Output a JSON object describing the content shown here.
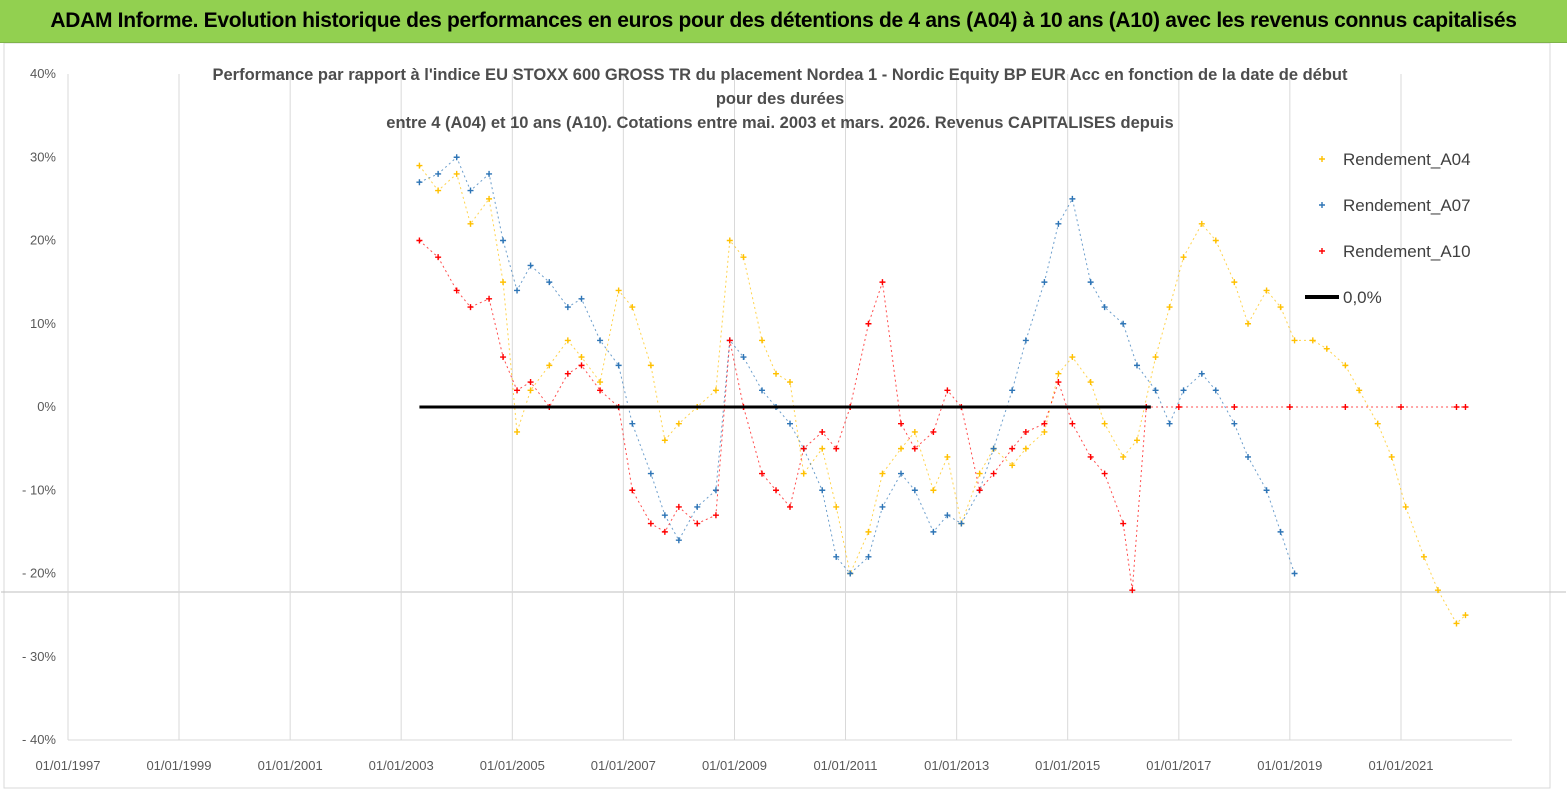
{
  "banner": {
    "title": "ADAM Informe. Evolution historique des performances en euros pour des détentions de 4 ans (A04) à 10 ans (A10) avec les revenus connus capitalisés"
  },
  "chart_data": {
    "type": "scatter",
    "title_lines": [
      "Performance par rapport à l'indice EU STOXX 600 GROSS TR  du placement Nordea 1 - Nordic Equity BP EUR Acc en fonction de la date de début",
      "pour des durées",
      "entre 4 (A04) et 10 ans (A10). Cotations entre mai. 2003 et mars. 2026. Revenus CAPITALISES depuis"
    ],
    "xlabel": "",
    "ylabel": "",
    "x_range": [
      "1997-01-01",
      "2023-01-01"
    ],
    "y_range": [
      -40,
      40
    ],
    "x_tick_labels": [
      "01/01/1997",
      "01/01/1999",
      "01/01/2001",
      "01/01/2003",
      "01/01/2005",
      "01/01/2007",
      "01/01/2009",
      "01/01/2011",
      "01/01/2013",
      "01/01/2015",
      "01/01/2017",
      "01/01/2019",
      "01/01/2021"
    ],
    "y_tick_values": [
      40,
      30,
      20,
      10,
      0,
      -10,
      -20,
      -30,
      -40
    ],
    "y_tick_labels": [
      "40%",
      "30%",
      "20%",
      "10%",
      "0%",
      "- 10%",
      "- 20%",
      "- 30%",
      "- 40%"
    ],
    "legend_position": "right",
    "grid": "vertical",
    "series": [
      {
        "name": "Rendement_A04",
        "color": "#ffc000",
        "marker": "plus",
        "x": [
          "2003-05-01",
          "2003-09-01",
          "2004-01-01",
          "2004-04-01",
          "2004-08-01",
          "2004-11-01",
          "2005-02-01",
          "2005-05-01",
          "2005-09-01",
          "2006-01-01",
          "2006-04-01",
          "2006-08-01",
          "2006-12-01",
          "2007-03-01",
          "2007-07-01",
          "2007-10-01",
          "2008-01-01",
          "2008-05-01",
          "2008-09-01",
          "2008-12-01",
          "2009-03-01",
          "2009-07-01",
          "2009-10-01",
          "2010-01-01",
          "2010-04-01",
          "2010-08-01",
          "2010-11-01",
          "2011-02-01",
          "2011-06-01",
          "2011-09-01",
          "2012-01-01",
          "2012-04-01",
          "2012-08-01",
          "2012-11-01",
          "2013-02-01",
          "2013-06-01",
          "2013-09-01",
          "2014-01-01",
          "2014-04-01",
          "2014-08-01",
          "2014-11-01",
          "2015-02-01",
          "2015-06-01",
          "2015-09-01",
          "2016-01-01",
          "2016-04-01",
          "2016-08-01",
          "2016-11-01",
          "2017-02-01",
          "2017-06-01",
          "2017-09-01",
          "2018-01-01",
          "2018-04-01",
          "2018-08-01",
          "2018-11-01",
          "2019-02-01",
          "2019-06-01",
          "2019-09-01",
          "2020-01-01",
          "2020-04-01",
          "2020-08-01",
          "2020-11-01",
          "2021-02-01",
          "2021-06-01",
          "2021-09-01",
          "2022-01-01",
          "2022-03-01"
        ],
        "y": [
          29,
          26,
          28,
          22,
          25,
          15,
          -3,
          2,
          5,
          8,
          6,
          3,
          14,
          12,
          5,
          -4,
          -2,
          0,
          2,
          20,
          18,
          8,
          4,
          3,
          -8,
          -5,
          -12,
          -20,
          -15,
          -8,
          -5,
          -3,
          -10,
          -6,
          -14,
          -8,
          -5,
          -7,
          -5,
          -3,
          4,
          6,
          3,
          -2,
          -6,
          -4,
          6,
          12,
          18,
          22,
          20,
          15,
          10,
          14,
          12,
          8,
          8,
          7,
          5,
          2,
          -2,
          -6,
          -12,
          -18,
          -22,
          -26,
          -25
        ]
      },
      {
        "name": "Rendement_A07",
        "color": "#2e75b6",
        "marker": "plus",
        "x": [
          "2003-05-01",
          "2003-09-01",
          "2004-01-01",
          "2004-04-01",
          "2004-08-01",
          "2004-11-01",
          "2005-02-01",
          "2005-05-01",
          "2005-09-01",
          "2006-01-01",
          "2006-04-01",
          "2006-08-01",
          "2006-12-01",
          "2007-03-01",
          "2007-07-01",
          "2007-10-01",
          "2008-01-01",
          "2008-05-01",
          "2008-09-01",
          "2008-12-01",
          "2009-03-01",
          "2009-07-01",
          "2009-10-01",
          "2010-01-01",
          "2010-04-01",
          "2010-08-01",
          "2010-11-01",
          "2011-02-01",
          "2011-06-01",
          "2011-09-01",
          "2012-01-01",
          "2012-04-01",
          "2012-08-01",
          "2012-11-01",
          "2013-02-01",
          "2013-06-01",
          "2013-09-01",
          "2014-01-01",
          "2014-04-01",
          "2014-08-01",
          "2014-11-01",
          "2015-02-01",
          "2015-06-01",
          "2015-09-01",
          "2016-01-01",
          "2016-04-01",
          "2016-08-01",
          "2016-11-01",
          "2017-02-01",
          "2017-06-01",
          "2017-09-01",
          "2018-01-01",
          "2018-04-01",
          "2018-08-01",
          "2018-11-01",
          "2019-02-01"
        ],
        "y": [
          27,
          28,
          30,
          26,
          28,
          20,
          14,
          17,
          15,
          12,
          13,
          8,
          5,
          -2,
          -8,
          -13,
          -16,
          -12,
          -10,
          8,
          6,
          2,
          0,
          -2,
          -5,
          -10,
          -18,
          -20,
          -18,
          -12,
          -8,
          -10,
          -15,
          -13,
          -14,
          -10,
          -5,
          2,
          8,
          15,
          22,
          25,
          15,
          12,
          10,
          5,
          2,
          -2,
          2,
          4,
          2,
          -2,
          -6,
          -10,
          -15,
          -20
        ]
      },
      {
        "name": "Rendement_A10",
        "color": "#ff0000",
        "marker": "plus",
        "x": [
          "2003-05-01",
          "2003-09-01",
          "2004-01-01",
          "2004-04-01",
          "2004-08-01",
          "2004-11-01",
          "2005-02-01",
          "2005-05-01",
          "2005-09-01",
          "2006-01-01",
          "2006-04-01",
          "2006-08-01",
          "2006-12-01",
          "2007-03-01",
          "2007-07-01",
          "2007-10-01",
          "2008-01-01",
          "2008-05-01",
          "2008-09-01",
          "2008-12-01",
          "2009-03-01",
          "2009-07-01",
          "2009-10-01",
          "2010-01-01",
          "2010-04-01",
          "2010-08-01",
          "2010-11-01",
          "2011-02-01",
          "2011-06-01",
          "2011-09-01",
          "2012-01-01",
          "2012-04-01",
          "2012-08-01",
          "2012-11-01",
          "2013-02-01",
          "2013-06-01",
          "2013-09-01",
          "2014-01-01",
          "2014-04-01",
          "2014-08-01",
          "2014-11-01",
          "2015-02-01",
          "2015-06-01",
          "2015-09-01",
          "2016-01-01",
          "2016-03-01",
          "2016-06-01",
          "2017-01-01",
          "2018-01-01",
          "2019-01-01",
          "2020-01-01",
          "2021-01-01",
          "2022-01-01",
          "2022-03-01"
        ],
        "y": [
          20,
          18,
          14,
          12,
          13,
          6,
          2,
          3,
          0,
          4,
          5,
          2,
          0,
          -10,
          -14,
          -15,
          -12,
          -14,
          -13,
          8,
          0,
          -8,
          -10,
          -12,
          -5,
          -3,
          -5,
          0,
          10,
          15,
          -2,
          -5,
          -3,
          2,
          0,
          -10,
          -8,
          -5,
          -3,
          -2,
          3,
          -2,
          -6,
          -8,
          -14,
          -22,
          0,
          0,
          0,
          0,
          0,
          0,
          0,
          0
        ]
      },
      {
        "name": "0,0%",
        "color": "#000000",
        "marker": "line",
        "x": [
          "2003-05-01",
          "2016-07-01"
        ],
        "y": [
          0,
          0
        ]
      }
    ]
  }
}
